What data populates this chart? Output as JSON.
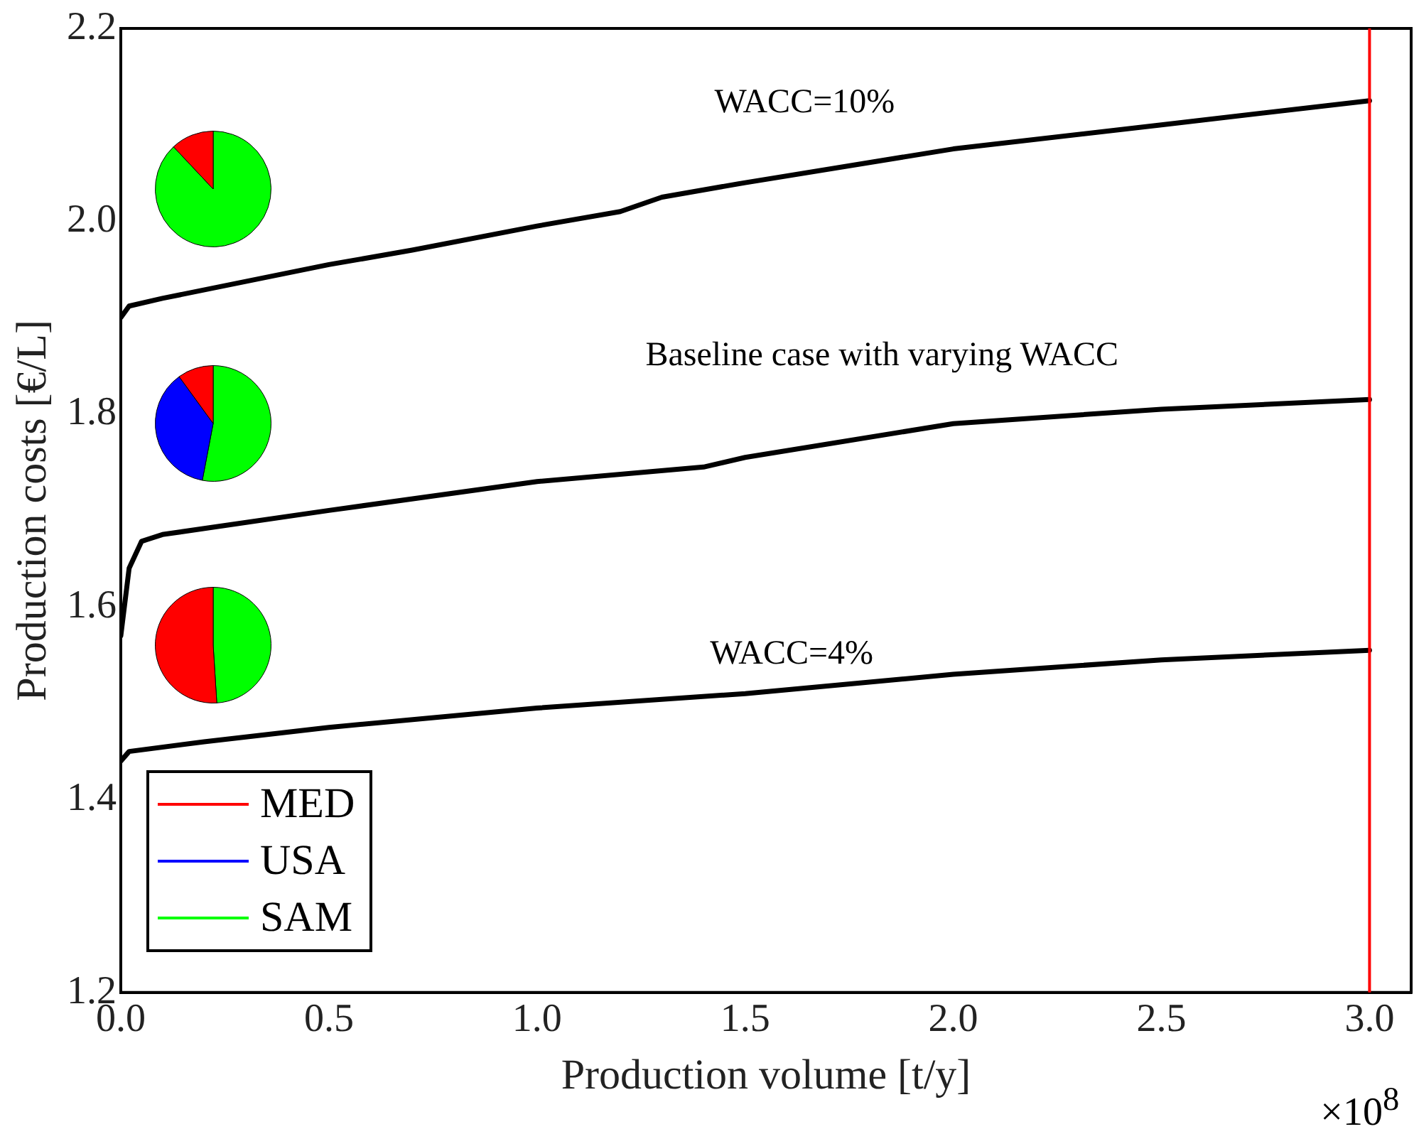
{
  "chart_data": [
    {
      "type": "line",
      "xlabel": "Production volume [t/y]",
      "ylabel": "Production costs [€/L]",
      "xlim": [
        0,
        3.1
      ],
      "xticks": [
        {
          "value": 0,
          "label": "0.0"
        },
        0.5,
        {
          "value": 1,
          "label": "1.0"
        },
        1.5,
        {
          "value": 2,
          "label": "2.0"
        },
        2.5,
        {
          "value": 3,
          "label": "3.0"
        }
      ],
      "ylim": [
        1.2,
        2.2
      ],
      "yticks": [
        1.2,
        1.4,
        1.6,
        1.8,
        {
          "value": 2,
          "label": "2.0"
        },
        2.2
      ],
      "grid": false,
      "legend": false,
      "marker": "none",
      "line_style": "solid",
      "series": [
        {
          "color": "#000000",
          "x": [
            0,
            0.02,
            0.1,
            0.5,
            0.7,
            1.0,
            1.2,
            1.3,
            1.5,
            2.0,
            2.5,
            3.0
          ],
          "values": [
            1.9,
            1.912,
            1.92,
            1.955,
            1.97,
            1.995,
            2.01,
            2.025,
            2.04,
            2.075,
            2.1,
            2.125
          ]
        },
        {
          "color": "#000000",
          "x": [
            0,
            0.02,
            0.05,
            0.1,
            0.5,
            1.0,
            1.4,
            1.5,
            2.0,
            2.5,
            3.0
          ],
          "values": [
            1.57,
            1.64,
            1.668,
            1.675,
            1.7,
            1.73,
            1.745,
            1.755,
            1.79,
            1.805,
            1.815
          ]
        },
        {
          "color": "#000000",
          "x": [
            0,
            0.02,
            0.2,
            0.5,
            1.0,
            1.5,
            2.0,
            2.5,
            3.0
          ],
          "values": [
            1.44,
            1.45,
            1.46,
            1.475,
            1.495,
            1.51,
            1.53,
            1.545,
            1.555
          ]
        }
      ],
      "ref_lines": [
        {
          "axis": "x",
          "value": 3.0,
          "color": "#ff0000"
        }
      ],
      "annotations": [
        "WACC=10%",
        "Baseline case with varying WACC",
        "WACC=4%",
        "×10$^{8}$"
      ]
    },
    {
      "type": "pie",
      "categories": [
        "MED",
        "USA",
        "SAM"
      ],
      "values": [
        12,
        0,
        88
      ],
      "colors": [
        "#ff0000",
        "#0000ff",
        "#00ff00"
      ],
      "legend": "bottom"
    },
    {
      "type": "pie",
      "categories": [
        null,
        null,
        null
      ],
      "values": [
        10,
        37,
        53
      ],
      "colors": [
        "#ff0000",
        "#0000ff",
        "#00ff00"
      ]
    },
    {
      "type": "pie",
      "categories": [
        null,
        null,
        null
      ],
      "values": [
        51,
        0,
        49
      ],
      "colors": [
        "#ff0000",
        "#0000ff",
        "#00ff00"
      ]
    }
  ]
}
